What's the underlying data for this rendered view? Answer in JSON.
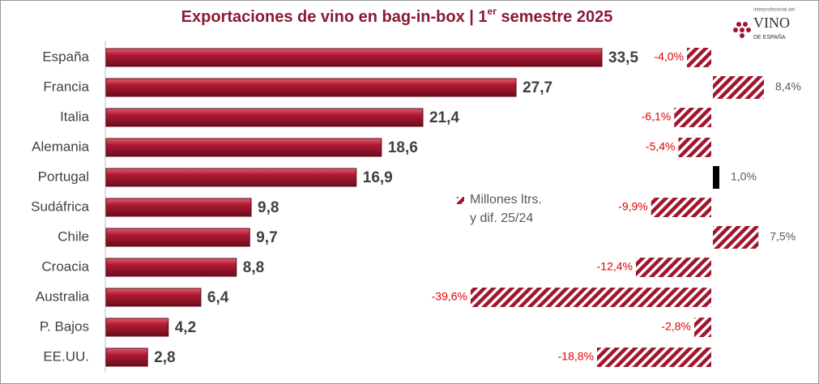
{
  "chart_data": {
    "type": "bar",
    "title": {
      "main": "Exportaciones de vino en bag-in-box | 1",
      "sup": "er",
      "end": " semestre 2025"
    },
    "logo": [
      "Interprofesional del",
      "VINO",
      "DE ESPAÑA"
    ],
    "legend": [
      "Millones ltrs.",
      "y dif. 25/24"
    ],
    "categories": [
      "España",
      "Francia",
      "Italia",
      "Alemania",
      "Portugal",
      "Sudáfrica",
      "Chile",
      "Croacia",
      "Australia",
      "P. Bajos",
      "EE.UU."
    ],
    "series": [
      {
        "color": "#a0162e",
        "values": [
          33.5,
          27.7,
          21.4,
          18.6,
          16.9,
          9.8,
          9.7,
          8.8,
          6.4,
          4.2,
          2.8
        ],
        "value_labels": [
          "33,5",
          "27,7",
          "21,4",
          "18,6",
          "16,9",
          "9,8",
          "9,7",
          "8,8",
          "6,4",
          "4,2",
          "2,8"
        ]
      },
      {
        "color": "#a0162e",
        "colors": [
          "#a0162e",
          "#a0162e",
          "#a0162e",
          "#a0162e",
          "#000000",
          "#a0162e",
          "#a0162e",
          "#a0162e",
          "#a0162e",
          "#a0162e",
          "#a0162e"
        ],
        "values": [
          -4.0,
          8.4,
          -6.1,
          -5.4,
          1.0,
          -9.9,
          7.5,
          -12.4,
          -39.6,
          -2.8,
          -18.8
        ],
        "value_labels": [
          "-4,0%",
          "8,4%",
          "-6,1%",
          "-5,4%",
          "1,0%",
          "-9,9%",
          "7,5%",
          "-12,4%",
          "-39,6%",
          "-2,8%",
          "-18,8%"
        ]
      }
    ]
  }
}
